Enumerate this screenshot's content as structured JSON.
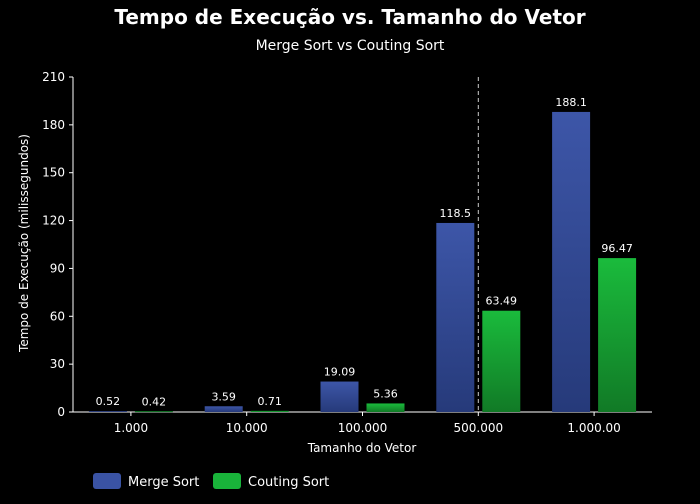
{
  "chart_data": {
    "type": "bar",
    "title": "Tempo de Execução vs. Tamanho do Vetor",
    "subtitle": "Merge Sort vs Couting Sort",
    "xlabel": "Tamanho do Vetor",
    "ylabel": "Tempo de Execução (milissegundos)",
    "categories": [
      "1.000",
      "10.000",
      "100.000",
      "500.000",
      "1.000.00"
    ],
    "ylim": [
      0,
      210
    ],
    "yticks": [
      0,
      30,
      60,
      90,
      120,
      150,
      180,
      210
    ],
    "series": [
      {
        "name": "Merge Sort",
        "values": [
          0.52,
          3.59,
          19.09,
          118.5,
          188.1
        ],
        "labels": [
          "0.52",
          "3.59",
          "19.09",
          "118.5",
          "188.1"
        ],
        "color": "#3a53a4"
      },
      {
        "name": "Couting Sort",
        "values": [
          0.42,
          0.71,
          5.36,
          63.49,
          96.47
        ],
        "labels": [
          "0.42",
          "0.71",
          "5.36",
          "63.49",
          "96.47"
        ],
        "color": "#19b33a"
      }
    ],
    "reference_line_between_categories": [
      "500.000",
      "500.000"
    ],
    "grid": false,
    "legend_position": "bottom-left"
  }
}
